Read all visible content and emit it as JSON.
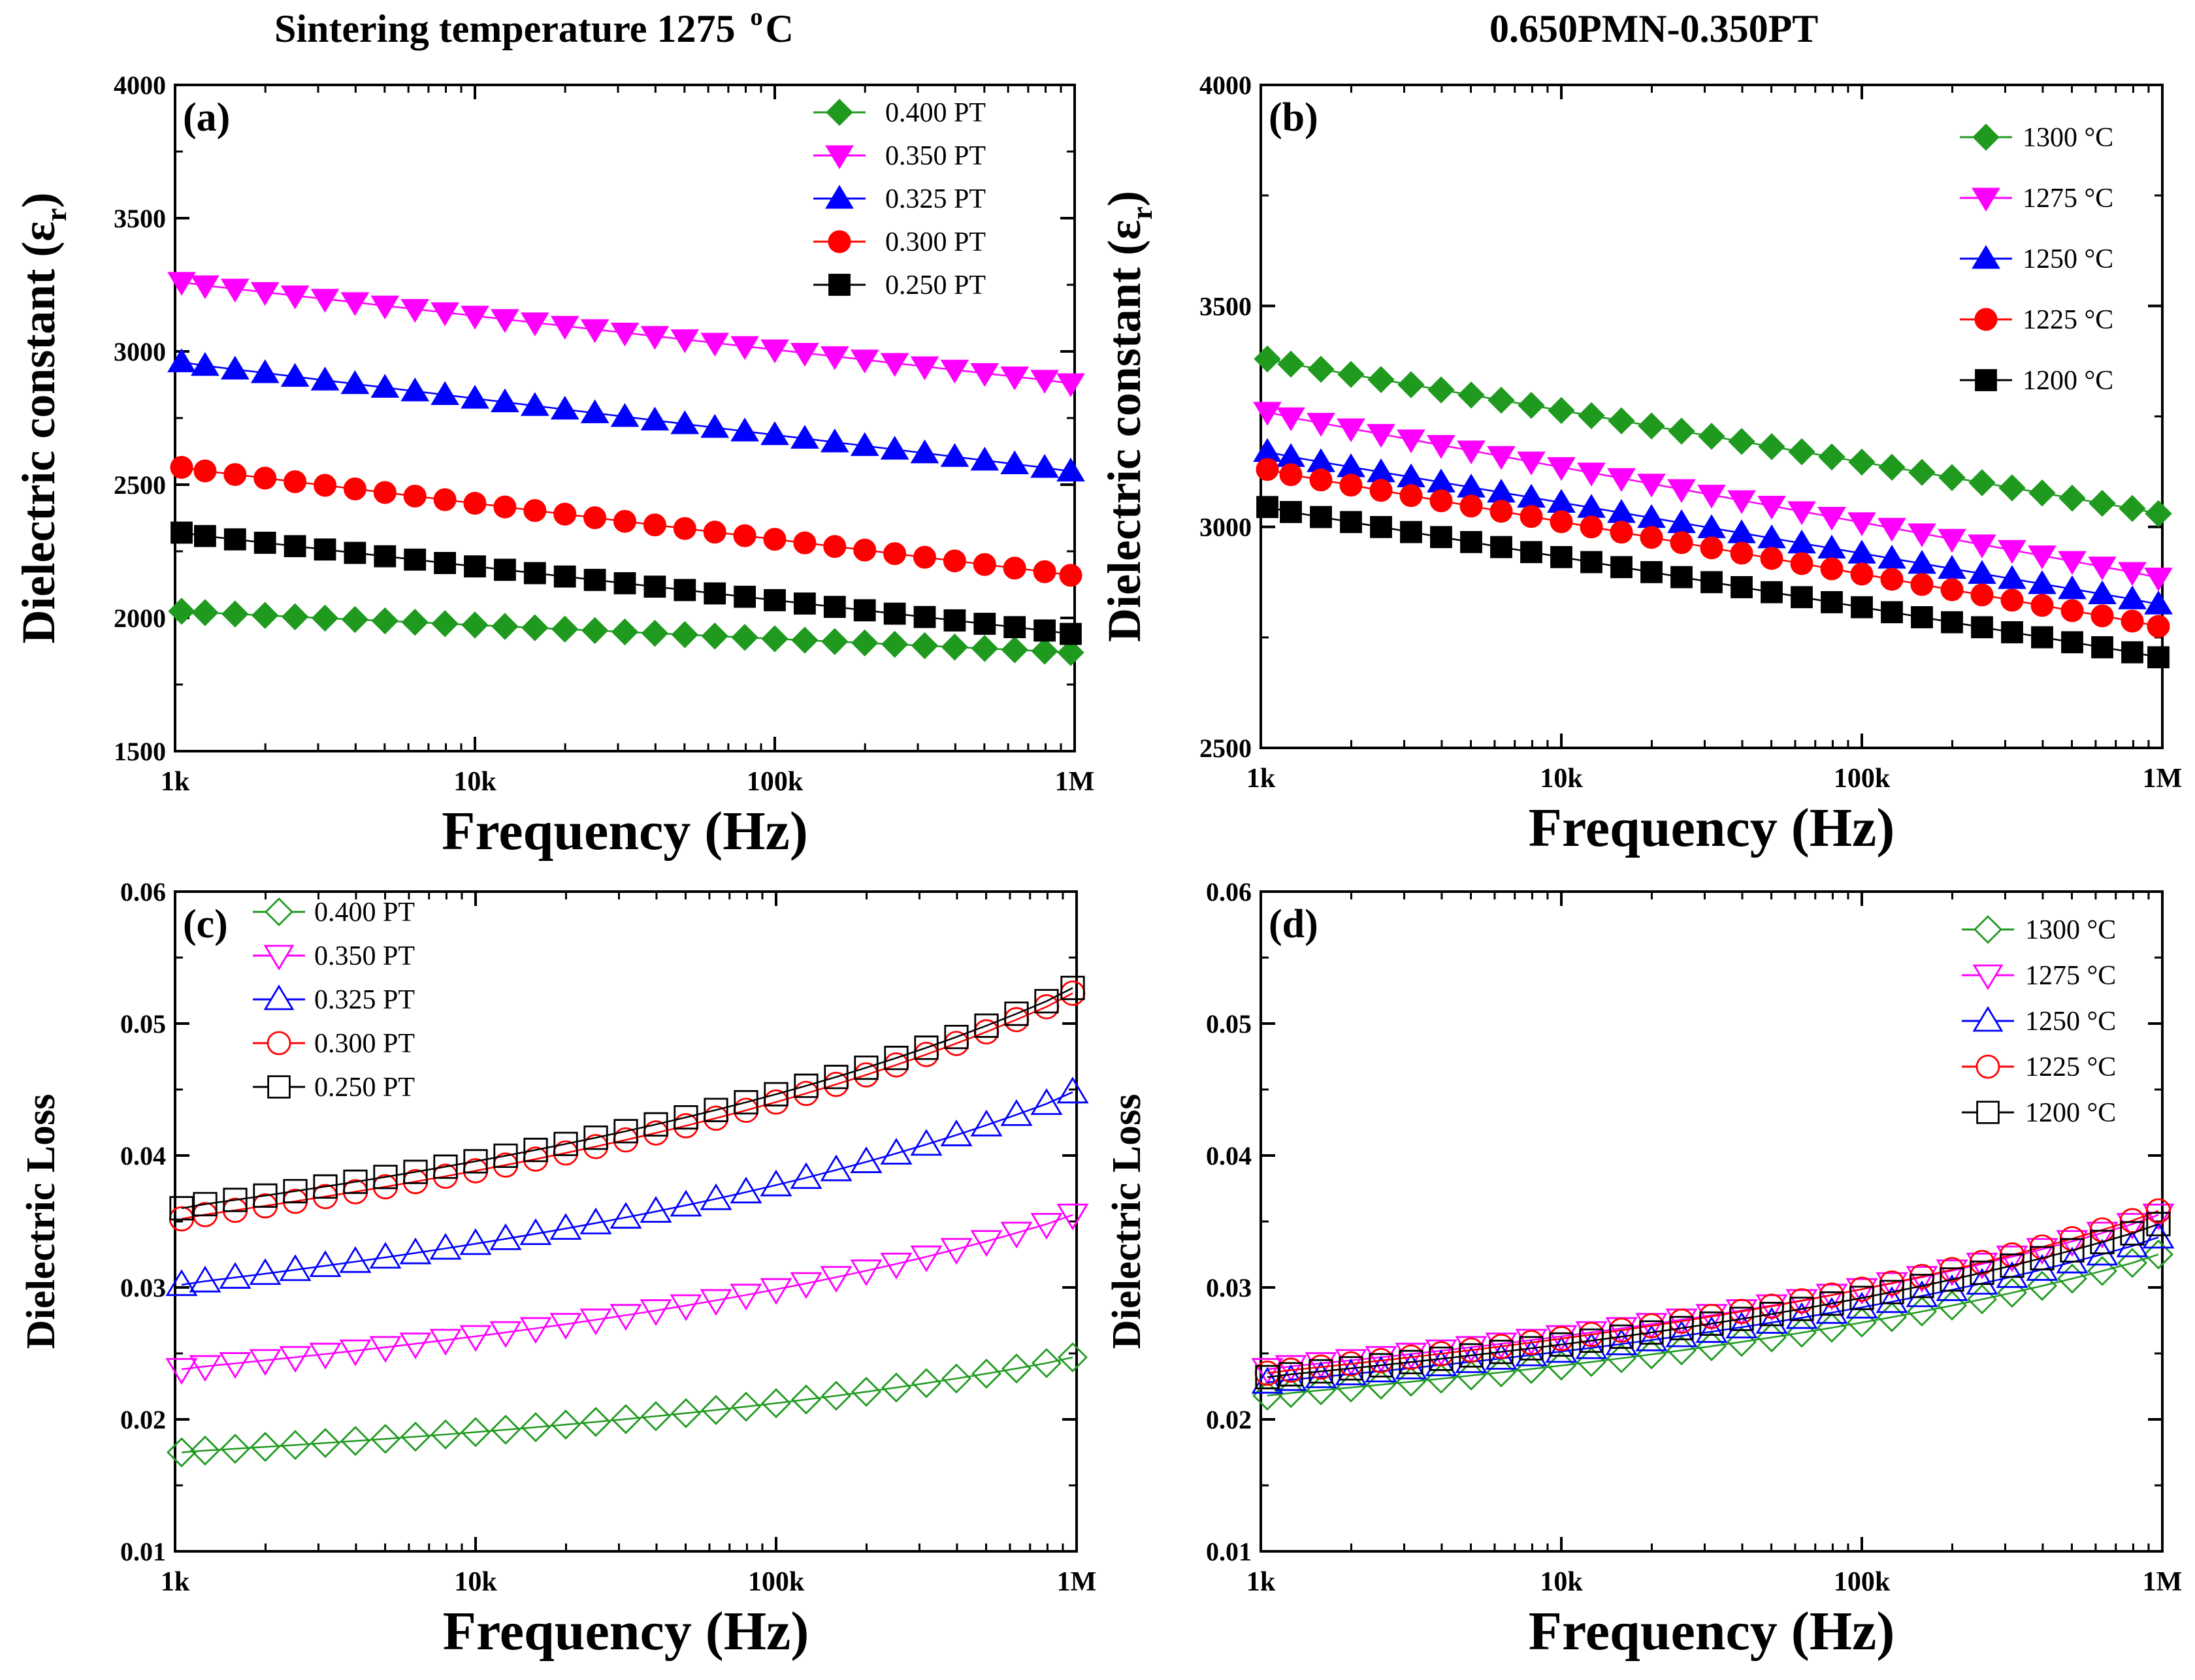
{
  "titles": {
    "left": {
      "prefix": "Sintering temperature 1275 ",
      "sup": "o",
      "suffix": "C"
    },
    "right": {
      "text": "0.650PMN-0.350PT"
    }
  },
  "chart_data": [
    {
      "id": "a",
      "panel_label": "(a)",
      "type": "scatter",
      "xscale": "log",
      "xlim": [
        1000,
        1000000
      ],
      "xticks": [
        "1k",
        "10k",
        "100k",
        "1M"
      ],
      "ylim": [
        1500,
        4000
      ],
      "yticks": [
        "1500",
        "2000",
        "2500",
        "3000",
        "3500",
        "4000"
      ],
      "xlabel": "Frequency (Hz)",
      "ylabel": "Dielectric constant (ε",
      "ylabel_sub": "r",
      "ylabel_end": ")",
      "legend_position": "top-right",
      "filled": true,
      "series": [
        {
          "name": "0.400 PT",
          "marker": "diamond",
          "color": "#1f9a1f",
          "start": 2025,
          "end": 1870
        },
        {
          "name": "0.350 PT",
          "marker": "triangle-down",
          "color": "#ff00ff",
          "start": 3260,
          "end": 2880
        },
        {
          "name": "0.325 PT",
          "marker": "triangle-up",
          "color": "#0000ff",
          "start": 2960,
          "end": 2550
        },
        {
          "name": "0.300 PT",
          "marker": "circle",
          "color": "#ff0000",
          "start": 2565,
          "end": 2160
        },
        {
          "name": "0.250 PT",
          "marker": "square",
          "color": "#000000",
          "start": 2320,
          "end": 1940
        }
      ]
    },
    {
      "id": "b",
      "panel_label": "(b)",
      "type": "scatter",
      "xscale": "log",
      "xlim": [
        1000,
        1000000
      ],
      "xticks": [
        "1k",
        "10k",
        "100k",
        "1M"
      ],
      "ylim": [
        2500,
        4000
      ],
      "yticks": [
        "2500",
        "3000",
        "3500",
        "4000"
      ],
      "xlabel": "Frequency (Hz)",
      "ylabel": "Dielectric constant (ε",
      "ylabel_sub": "r",
      "ylabel_end": ")",
      "legend_position": "top-right",
      "filled": true,
      "series": [
        {
          "name": "1300 °C",
          "marker": "diamond",
          "color": "#1f9a1f",
          "start": 3380,
          "end": 3030
        },
        {
          "name": "1275 °C",
          "marker": "triangle-down",
          "color": "#ff00ff",
          "start": 3260,
          "end": 2885
        },
        {
          "name": "1250 °C",
          "marker": "triangle-up",
          "color": "#0000ff",
          "start": 3170,
          "end": 2825
        },
        {
          "name": "1225 °C",
          "marker": "circle",
          "color": "#ff0000",
          "start": 3130,
          "end": 2775
        },
        {
          "name": "1200 °C",
          "marker": "square",
          "color": "#000000",
          "start": 3045,
          "end": 2705
        }
      ]
    },
    {
      "id": "c",
      "panel_label": "(c)",
      "type": "scatter",
      "xscale": "log",
      "xlim": [
        1000,
        1000000
      ],
      "xticks": [
        "1k",
        "10k",
        "100k",
        "1M"
      ],
      "ylim": [
        0.01,
        0.06
      ],
      "yticks": [
        "0.01",
        "0.02",
        "0.03",
        "0.04",
        "0.05",
        "0.06"
      ],
      "xlabel": "Frequency (Hz)",
      "ylabel": "Dielectric Loss",
      "legend_position": "top-left",
      "filled": false,
      "series": [
        {
          "name": "0.400 PT",
          "marker": "diamond",
          "color": "#1f9a1f",
          "start": 0.0175,
          "end": 0.0247
        },
        {
          "name": "0.350 PT",
          "marker": "triangle-down",
          "color": "#ff00ff",
          "start": 0.0238,
          "end": 0.0355
        },
        {
          "name": "0.325 PT",
          "marker": "triangle-up",
          "color": "#0000ff",
          "start": 0.0302,
          "end": 0.0448
        },
        {
          "name": "0.300 PT",
          "marker": "circle",
          "color": "#ff0000",
          "start": 0.0352,
          "end": 0.0523
        },
        {
          "name": "0.250 PT",
          "marker": "square",
          "color": "#000000",
          "start": 0.036,
          "end": 0.0527
        }
      ]
    },
    {
      "id": "d",
      "panel_label": "(d)",
      "type": "scatter",
      "xscale": "log",
      "xlim": [
        1000,
        1000000
      ],
      "xticks": [
        "1k",
        "10k",
        "100k",
        "1M"
      ],
      "ylim": [
        0.01,
        0.06
      ],
      "yticks": [
        "0.01",
        "0.02",
        "0.03",
        "0.04",
        "0.05",
        "0.06"
      ],
      "xlabel": "Frequency (Hz)",
      "ylabel": "Dielectric Loss",
      "legend_position": "top-right",
      "filled": false,
      "series": [
        {
          "name": "1300 °C",
          "marker": "diamond",
          "color": "#1f9a1f",
          "start": 0.0218,
          "end": 0.0325
        },
        {
          "name": "1275 °C",
          "marker": "triangle-down",
          "color": "#ff00ff",
          "start": 0.0238,
          "end": 0.0355
        },
        {
          "name": "1250 °C",
          "marker": "triangle-up",
          "color": "#0000ff",
          "start": 0.0228,
          "end": 0.0338
        },
        {
          "name": "1225 °C",
          "marker": "circle",
          "color": "#ff0000",
          "start": 0.0235,
          "end": 0.0358
        },
        {
          "name": "1200 °C",
          "marker": "square",
          "color": "#000000",
          "start": 0.0232,
          "end": 0.0348
        }
      ]
    }
  ]
}
